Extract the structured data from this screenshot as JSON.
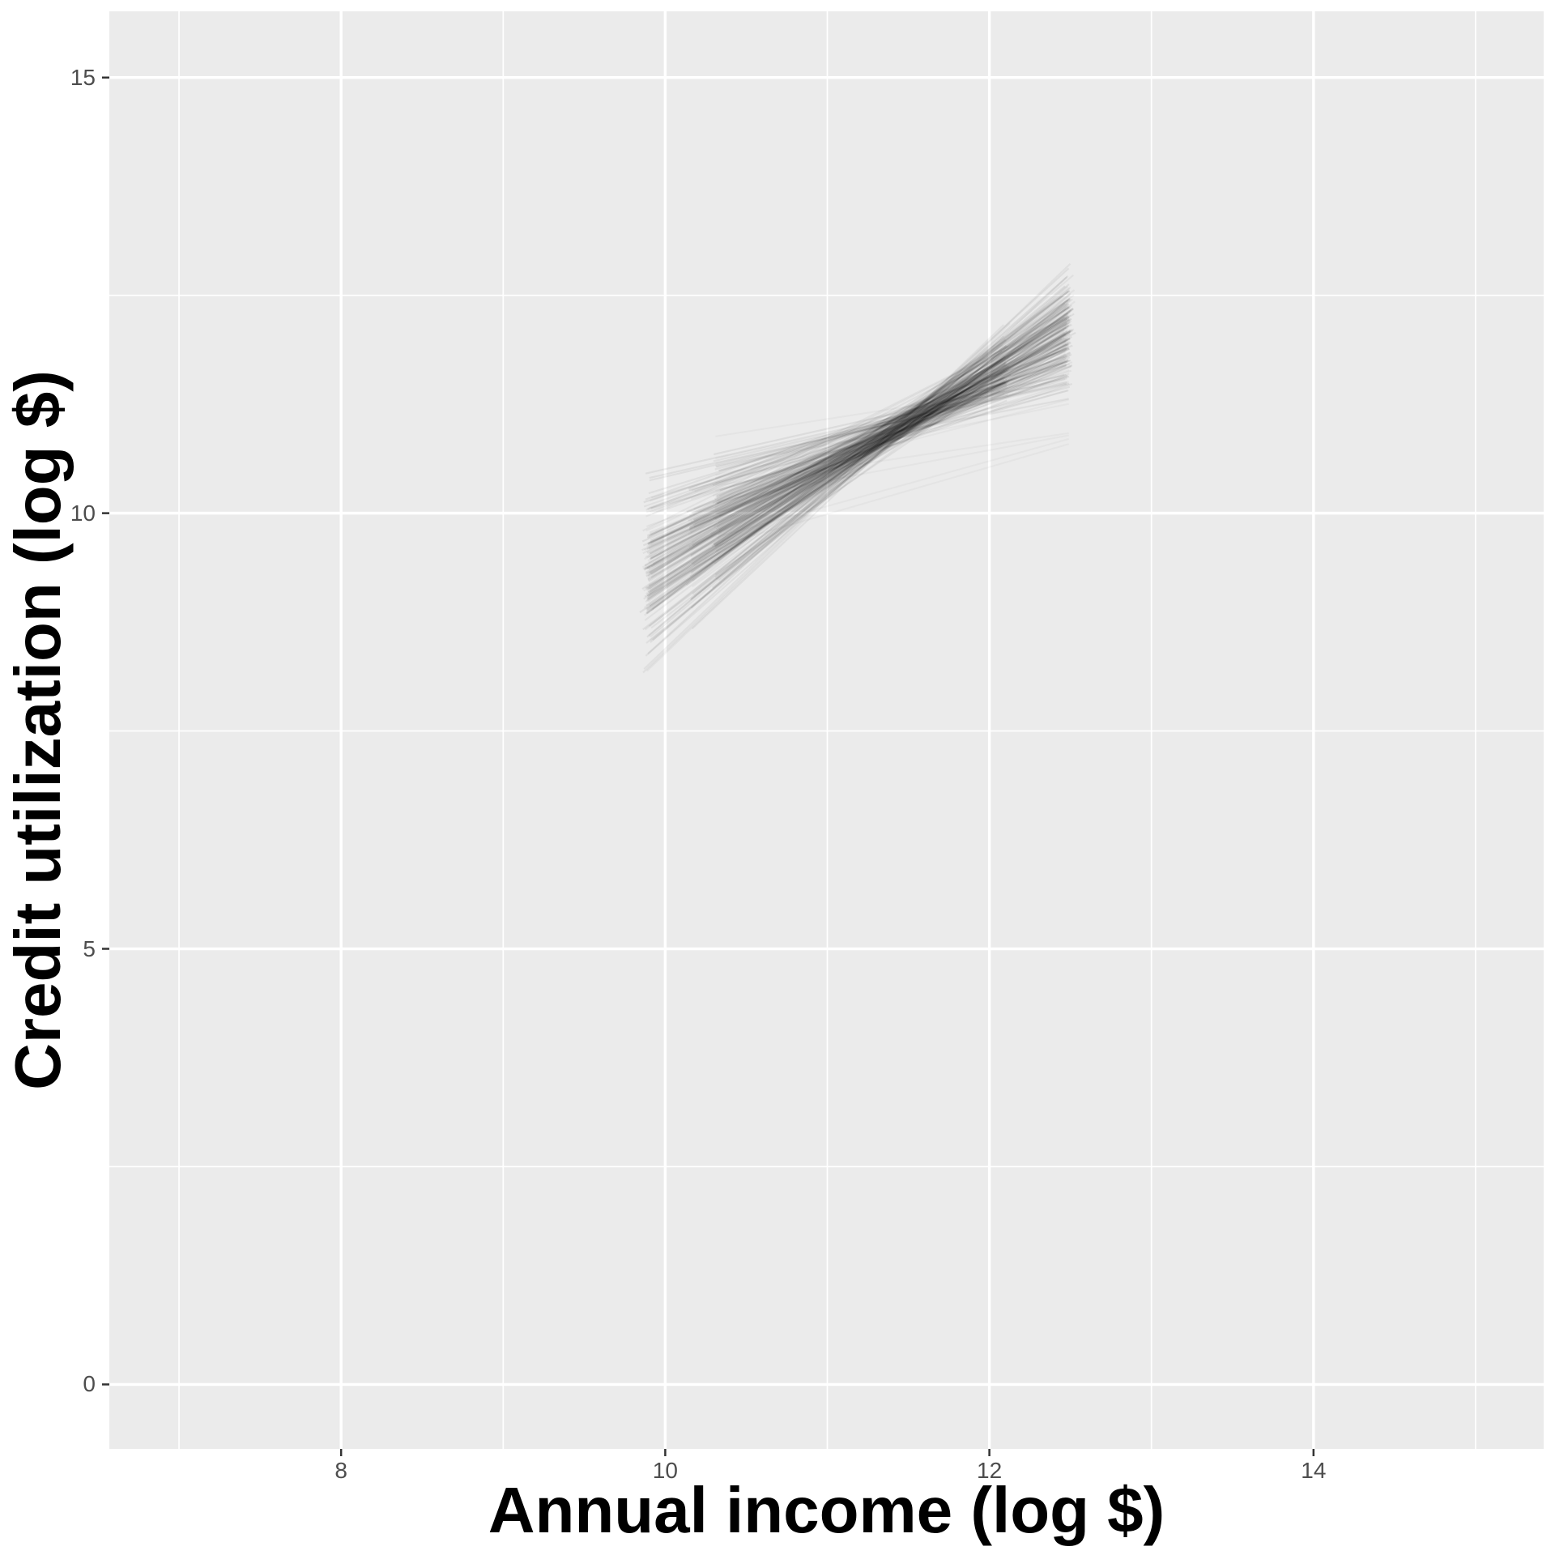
{
  "chart_data": {
    "type": "line",
    "subtype": "spaghetti-regression-draws",
    "title": "",
    "xlabel": "Annual income (log $)",
    "ylabel": "Credit utilization (log $)",
    "x_ticks": [
      8,
      10,
      12,
      14
    ],
    "x_minor_ticks": [
      7,
      9,
      11,
      13,
      15
    ],
    "y_ticks": [
      0,
      5,
      10,
      15
    ],
    "y_minor_ticks": [
      2.5,
      7.5,
      12.5
    ],
    "x_axis_range": [
      6.57,
      15.42
    ],
    "y_axis_range": [
      -0.74,
      15.76
    ],
    "grid": "on",
    "legend": "none",
    "colors": {
      "panel_background": "#EBEBEB",
      "grid": "#FFFFFF",
      "tick_mark": "#333333",
      "tick_label": "#4D4D4D",
      "axis_title": "#000000",
      "line": "#000000"
    },
    "ensemble": {
      "description": "Bundle of semi-transparent straight-line fit draws (posterior/bootstrap spaghetti) of credit utilization vs annual income",
      "n_lines": 250,
      "n_outlier_lines": 12,
      "seed": 11,
      "line_alpha": 0.05,
      "pivot_x": 11.5,
      "intercept_at_pivot": {
        "mean": 11.05,
        "sd": 0.09
      },
      "slope": {
        "mean": 1.05,
        "sd": 0.28,
        "min": 0.42,
        "max": 1.78
      },
      "x_start_options": [
        {
          "x": 9.89,
          "w": 0.6
        },
        {
          "x": 10.16,
          "w": 0.2
        },
        {
          "x": 10.31,
          "w": 0.2
        }
      ],
      "x_end_options": [
        {
          "x": 12.49,
          "w": 0.75
        },
        {
          "x": 12.1,
          "w": 0.25
        }
      ],
      "jitter_sd": 0.015,
      "outlier": {
        "x_start": 10.31,
        "x_end": 12.49,
        "slope_min": 0.25,
        "slope_max": 0.55,
        "y_end_min": 10.75,
        "y_end_max": 11.6,
        "alpha": 0.028
      }
    },
    "mean_trend": {
      "x": [
        9.89,
        11.5,
        12.49
      ],
      "y": [
        9.37,
        11.05,
        12.09
      ]
    }
  }
}
